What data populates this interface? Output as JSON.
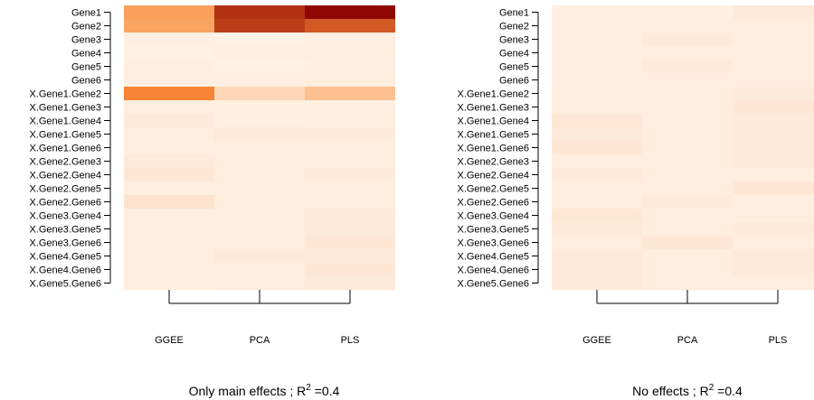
{
  "chart_data": [
    {
      "type": "heatmap",
      "caption": "Only main effects ; R",
      "caption_sup": "2",
      "caption_tail": " =0.4",
      "rows": [
        "Gene1",
        "Gene2",
        "Gene3",
        "Gene4",
        "Gene5",
        "Gene6",
        "X.Gene1.Gene2",
        "X.Gene1.Gene3",
        "X.Gene1.Gene4",
        "X.Gene1.Gene5",
        "X.Gene1.Gene6",
        "X.Gene2.Gene3",
        "X.Gene2.Gene4",
        "X.Gene2.Gene5",
        "X.Gene2.Gene6",
        "X.Gene3.Gene4",
        "X.Gene3.Gene5",
        "X.Gene3.Gene6",
        "X.Gene4.Gene5",
        "X.Gene4.Gene6",
        "X.Gene5.Gene6"
      ],
      "columns": [
        "GGEE",
        "PCA",
        "PLS"
      ],
      "values": [
        [
          0.4,
          0.82,
          0.98
        ],
        [
          0.38,
          0.78,
          0.68
        ],
        [
          0.03,
          0.02,
          0.03
        ],
        [
          0.02,
          0.03,
          0.04
        ],
        [
          0.03,
          0.02,
          0.03
        ],
        [
          0.03,
          0.03,
          0.04
        ],
        [
          0.52,
          0.14,
          0.25
        ],
        [
          0.04,
          0.03,
          0.03
        ],
        [
          0.05,
          0.03,
          0.04
        ],
        [
          0.04,
          0.05,
          0.05
        ],
        [
          0.03,
          0.04,
          0.04
        ],
        [
          0.05,
          0.04,
          0.04
        ],
        [
          0.06,
          0.04,
          0.05
        ],
        [
          0.03,
          0.04,
          0.04
        ],
        [
          0.08,
          0.04,
          0.04
        ],
        [
          0.03,
          0.04,
          0.05
        ],
        [
          0.04,
          0.04,
          0.05
        ],
        [
          0.03,
          0.04,
          0.06
        ],
        [
          0.04,
          0.05,
          0.05
        ],
        [
          0.04,
          0.04,
          0.06
        ],
        [
          0.03,
          0.04,
          0.05
        ]
      ]
    },
    {
      "type": "heatmap",
      "caption": "No effects ; R",
      "caption_sup": "2",
      "caption_tail": " =0.4",
      "rows": [
        "Gene1",
        "Gene2",
        "Gene3",
        "Gene4",
        "Gene5",
        "Gene6",
        "X.Gene1.Gene2",
        "X.Gene1.Gene3",
        "X.Gene1.Gene4",
        "X.Gene1.Gene5",
        "X.Gene1.Gene6",
        "X.Gene2.Gene3",
        "X.Gene2.Gene4",
        "X.Gene2.Gene5",
        "X.Gene2.Gene6",
        "X.Gene3.Gene4",
        "X.Gene3.Gene5",
        "X.Gene3.Gene6",
        "X.Gene4.Gene5",
        "X.Gene4.Gene6",
        "X.Gene5.Gene6"
      ],
      "columns": [
        "GGEE",
        "PCA",
        "PLS"
      ],
      "values": [
        [
          0.03,
          0.03,
          0.05
        ],
        [
          0.03,
          0.03,
          0.04
        ],
        [
          0.03,
          0.05,
          0.04
        ],
        [
          0.03,
          0.04,
          0.04
        ],
        [
          0.03,
          0.05,
          0.04
        ],
        [
          0.03,
          0.04,
          0.04
        ],
        [
          0.04,
          0.04,
          0.05
        ],
        [
          0.04,
          0.04,
          0.06
        ],
        [
          0.06,
          0.04,
          0.05
        ],
        [
          0.05,
          0.04,
          0.05
        ],
        [
          0.06,
          0.04,
          0.05
        ],
        [
          0.04,
          0.04,
          0.05
        ],
        [
          0.05,
          0.04,
          0.04
        ],
        [
          0.04,
          0.04,
          0.06
        ],
        [
          0.04,
          0.05,
          0.04
        ],
        [
          0.06,
          0.04,
          0.04
        ],
        [
          0.05,
          0.04,
          0.05
        ],
        [
          0.04,
          0.06,
          0.04
        ],
        [
          0.05,
          0.04,
          0.05
        ],
        [
          0.05,
          0.04,
          0.05
        ],
        [
          0.05,
          0.04,
          0.04
        ]
      ]
    }
  ],
  "color_scale": {
    "low": "#FFF5EB",
    "mid": "#F98B36",
    "high": "#8B0000"
  }
}
